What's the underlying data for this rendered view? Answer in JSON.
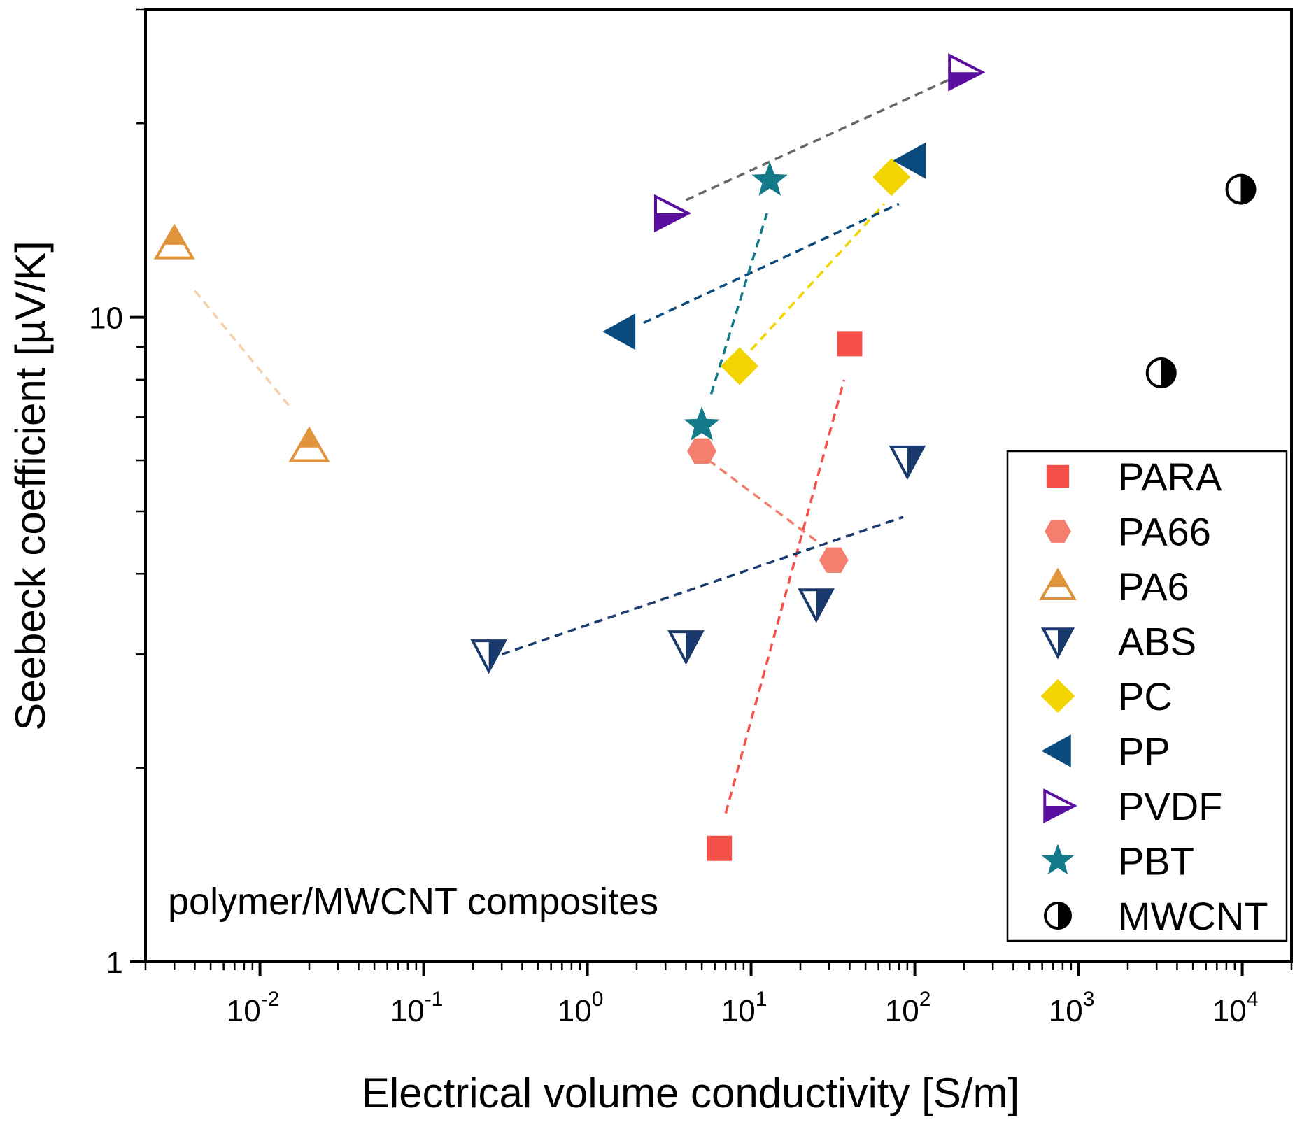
{
  "chart_data": {
    "type": "scatter",
    "title": "",
    "xlabel": "Electrical volume conductivity [S/m]",
    "ylabel": "Seebeck coefficient [µV/K]",
    "xscale": "log",
    "yscale": "log",
    "xlim": [
      0.002,
      20000
    ],
    "ylim": [
      1,
      30
    ],
    "xticks": [
      {
        "base": "10",
        "exp": "-2",
        "value": 0.01
      },
      {
        "base": "10",
        "exp": "-1",
        "value": 0.1
      },
      {
        "base": "10",
        "exp": "0",
        "value": 1
      },
      {
        "base": "10",
        "exp": "1",
        "value": 10
      },
      {
        "base": "10",
        "exp": "2",
        "value": 100
      },
      {
        "base": "10",
        "exp": "3",
        "value": 1000
      },
      {
        "base": "10",
        "exp": "4",
        "value": 10000
      }
    ],
    "yticks": [
      {
        "label": "1",
        "value": 1
      },
      {
        "label": "10",
        "value": 10
      }
    ],
    "annotation": "polymer/MWCNT composites",
    "legend_position": "bottom-right",
    "series": [
      {
        "name": "PARA",
        "marker": "square",
        "color": "#f5504a",
        "points": [
          [
            6.4,
            1.5
          ],
          [
            40,
            9.1
          ]
        ],
        "trend": {
          "color": "#f5504a",
          "from": [
            7,
            1.7
          ],
          "to": [
            37,
            8.0
          ]
        }
      },
      {
        "name": "PA66",
        "marker": "hexagon",
        "color": "#f47f6f",
        "points": [
          [
            5,
            6.2
          ],
          [
            32,
            4.2
          ]
        ],
        "trend": {
          "color": "#f47f6f",
          "from": [
            5.5,
            6.0
          ],
          "to": [
            25,
            4.5
          ]
        }
      },
      {
        "name": "PA6",
        "marker": "triangle-up-half",
        "color": "#e0943c",
        "points": [
          [
            0.003,
            13.0
          ],
          [
            0.02,
            6.3
          ]
        ],
        "trend": {
          "color": "#f5d2ad",
          "from": [
            0.004,
            11.0
          ],
          "to": [
            0.015,
            7.3
          ]
        }
      },
      {
        "name": "ABS",
        "marker": "triangle-down-half",
        "color": "#1a3a6e",
        "points": [
          [
            0.25,
            3.0
          ],
          [
            4,
            3.1
          ],
          [
            25,
            3.6
          ],
          [
            90,
            6.0
          ]
        ],
        "trend": {
          "color": "#1a3a6e",
          "from": [
            0.3,
            3.0
          ],
          "to": [
            85,
            4.9
          ]
        }
      },
      {
        "name": "PC",
        "marker": "diamond",
        "color": "#f2d400",
        "points": [
          [
            8.5,
            8.4
          ],
          [
            72,
            16.5
          ]
        ],
        "trend": {
          "color": "#f2d400",
          "from": [
            10,
            8.9
          ],
          "to": [
            65,
            15.0
          ]
        }
      },
      {
        "name": "PP",
        "marker": "triangle-left",
        "color": "#0a4a7c",
        "points": [
          [
            1.6,
            9.5
          ],
          [
            95,
            17.5
          ]
        ],
        "trend": {
          "color": "#0a4a7c",
          "from": [
            2.2,
            9.8
          ],
          "to": [
            80,
            15.0
          ]
        }
      },
      {
        "name": "PVDF",
        "marker": "triangle-right-half",
        "color": "#5a0fa0",
        "points": [
          [
            3.2,
            14.5
          ],
          [
            200,
            24.0
          ]
        ],
        "trend": {
          "color": "#666666",
          "from": [
            4.0,
            15.2
          ],
          "to": [
            170,
            23.5
          ]
        }
      },
      {
        "name": "PBT",
        "marker": "star",
        "color": "#137a8a",
        "points": [
          [
            5,
            6.8
          ],
          [
            13,
            16.3
          ]
        ],
        "trend": {
          "color": "#137a8a",
          "from": [
            5.7,
            7.6
          ],
          "to": [
            12.5,
            14.5
          ]
        }
      },
      {
        "name": "MWCNT",
        "marker": "circle-half",
        "color": "#000000",
        "points": [
          [
            3200,
            8.2
          ],
          [
            9800,
            15.8
          ]
        ],
        "trend": null
      }
    ]
  }
}
